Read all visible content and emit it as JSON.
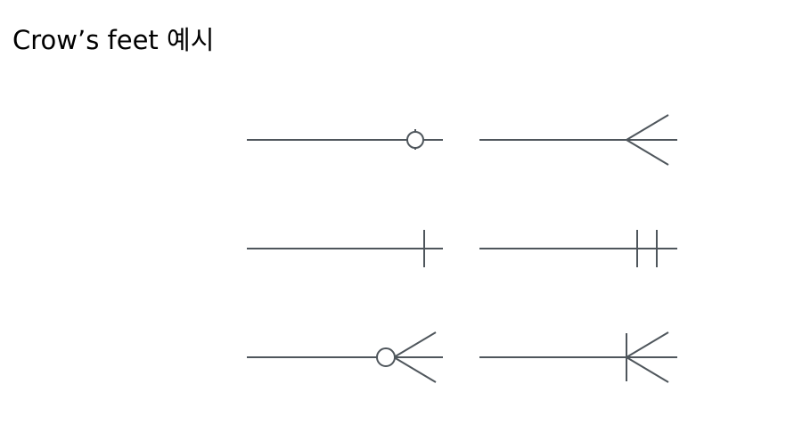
{
  "page": {
    "title": "Crow’s feet 예시"
  },
  "colors": {
    "line": "#4f565c",
    "background": "#ffffff",
    "text": "#000000"
  },
  "notations": [
    {
      "name": "zero-or-one",
      "symbol": "line-circle-bar"
    },
    {
      "name": "many",
      "symbol": "crow-foot"
    },
    {
      "name": "one",
      "symbol": "single-bar"
    },
    {
      "name": "one-and-only-one",
      "symbol": "double-bar"
    },
    {
      "name": "zero-or-many",
      "symbol": "circle-crow-foot"
    },
    {
      "name": "one-or-many",
      "symbol": "bar-crow-foot"
    }
  ]
}
